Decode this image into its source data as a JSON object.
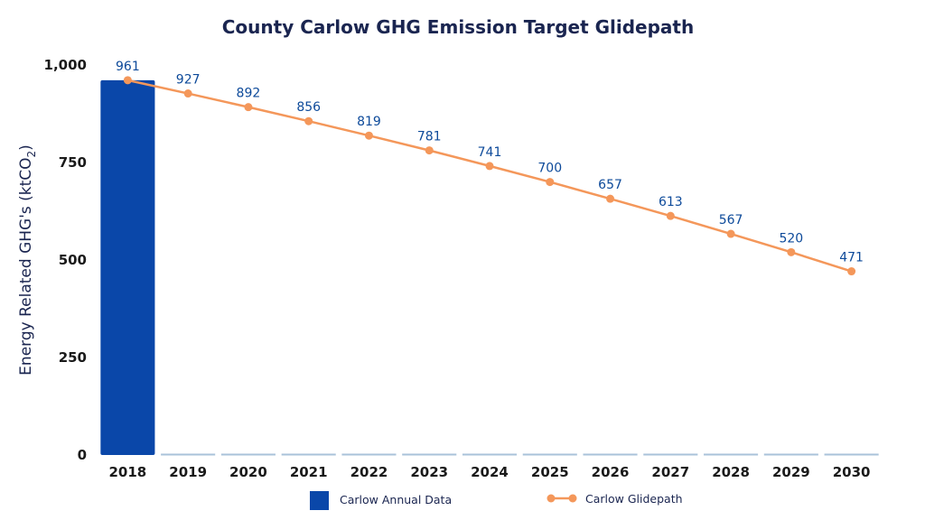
{
  "chart_data": {
    "type": "bar",
    "title": "County Carlow GHG Emission Target Glidepath",
    "ylabel": "Energy Related GHG's (ktCO",
    "ylabel_sub": "2",
    "ylabel_end": ")",
    "xlabel": "",
    "ylim": [
      0,
      1000
    ],
    "yticks": [
      0,
      250,
      500,
      750,
      1000
    ],
    "ytick_labels": [
      "0",
      "250",
      "500",
      "750",
      "1,000"
    ],
    "categories": [
      "2018",
      "2019",
      "2020",
      "2021",
      "2022",
      "2023",
      "2024",
      "2025",
      "2026",
      "2027",
      "2028",
      "2029",
      "2030"
    ],
    "series": [
      {
        "name": "Carlow Annual Data",
        "type": "bar",
        "color": "#0a47a9",
        "values": [
          961,
          0,
          0,
          0,
          0,
          0,
          0,
          0,
          0,
          0,
          0,
          0,
          0
        ]
      },
      {
        "name": "Carlow Glidepath",
        "type": "line",
        "color": "#f4975a",
        "values": [
          961,
          927,
          892,
          856,
          819,
          781,
          741,
          700,
          657,
          613,
          567,
          520,
          471
        ],
        "labels": [
          "961",
          "927",
          "892",
          "856",
          "819",
          "781",
          "741",
          "700",
          "657",
          "613",
          "567",
          "520",
          "471"
        ]
      }
    ],
    "grid": false,
    "legend": "bottom"
  }
}
